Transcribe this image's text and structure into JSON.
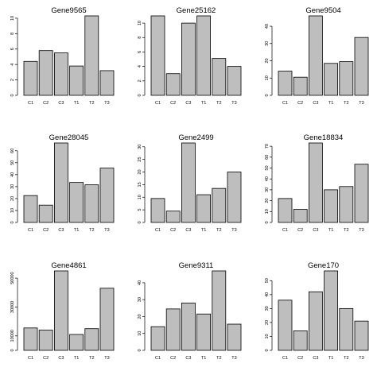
{
  "chart_data": [
    {
      "type": "bar",
      "title": "Gene9565",
      "categories": [
        "C1",
        "C2",
        "C3",
        "T1",
        "T2",
        "T3"
      ],
      "values": [
        4.4,
        5.8,
        5.5,
        3.8,
        10.3,
        3.2
      ],
      "ylim": [
        0,
        10.3
      ],
      "yticks": [
        0,
        2,
        4,
        6,
        8,
        10
      ]
    },
    {
      "type": "bar",
      "title": "Gene25162",
      "categories": [
        "C1",
        "C2",
        "C3",
        "T1",
        "T2",
        "T3"
      ],
      "values": [
        11.0,
        3.0,
        10.0,
        11.0,
        5.1,
        4.0
      ],
      "ylim": [
        0,
        11.0
      ],
      "yticks": [
        0,
        2,
        4,
        6,
        8,
        10
      ]
    },
    {
      "type": "bar",
      "title": "Gene9504",
      "categories": [
        "C1",
        "C2",
        "C3",
        "T1",
        "T2",
        "T3"
      ],
      "values": [
        14,
        10.5,
        46,
        18.5,
        19.5,
        33.5
      ],
      "ylim": [
        0,
        46
      ],
      "yticks": [
        0,
        10,
        20,
        30,
        40
      ]
    },
    {
      "type": "bar",
      "title": "Gene28045",
      "categories": [
        "C1",
        "C2",
        "C3",
        "T1",
        "T2",
        "T3"
      ],
      "values": [
        22.5,
        14.5,
        66.5,
        33.5,
        31.5,
        45.5
      ],
      "ylim": [
        0,
        66.5
      ],
      "yticks": [
        0,
        10,
        20,
        30,
        40,
        50,
        60
      ]
    },
    {
      "type": "bar",
      "title": "Gene2499",
      "categories": [
        "C1",
        "C2",
        "C3",
        "T1",
        "T2",
        "T3"
      ],
      "values": [
        9.5,
        4.5,
        31.5,
        11,
        13.5,
        20
      ],
      "ylim": [
        0,
        31.5
      ],
      "yticks": [
        0,
        5,
        10,
        15,
        20,
        25,
        30
      ]
    },
    {
      "type": "bar",
      "title": "Gene18834",
      "categories": [
        "C1",
        "C2",
        "C3",
        "T1",
        "T2",
        "T3"
      ],
      "values": [
        22,
        12,
        73,
        30,
        33,
        53.5
      ],
      "ylim": [
        0,
        73
      ],
      "yticks": [
        0,
        10,
        20,
        30,
        40,
        50,
        60,
        70
      ]
    },
    {
      "type": "bar",
      "title": "Gene4861",
      "categories": [
        "C1",
        "C2",
        "C3",
        "T1",
        "T2",
        "T3"
      ],
      "values": [
        15500,
        14000,
        55000,
        11000,
        15000,
        43000
      ],
      "ylim": [
        0,
        55000
      ],
      "yticks": [
        0,
        10000,
        30000,
        50000
      ]
    },
    {
      "type": "bar",
      "title": "Gene9311",
      "categories": [
        "C1",
        "C2",
        "C3",
        "T1",
        "T2",
        "T3"
      ],
      "values": [
        14,
        24.5,
        28,
        21.5,
        47,
        15.5
      ],
      "ylim": [
        0,
        47
      ],
      "yticks": [
        0,
        10,
        20,
        30,
        40
      ]
    },
    {
      "type": "bar",
      "title": "Gene170",
      "categories": [
        "C1",
        "C2",
        "C3",
        "T1",
        "T2",
        "T3"
      ],
      "values": [
        36,
        14,
        42,
        57,
        30,
        21
      ],
      "ylim": [
        0,
        57
      ],
      "yticks": [
        0,
        10,
        20,
        30,
        40,
        50
      ]
    }
  ]
}
